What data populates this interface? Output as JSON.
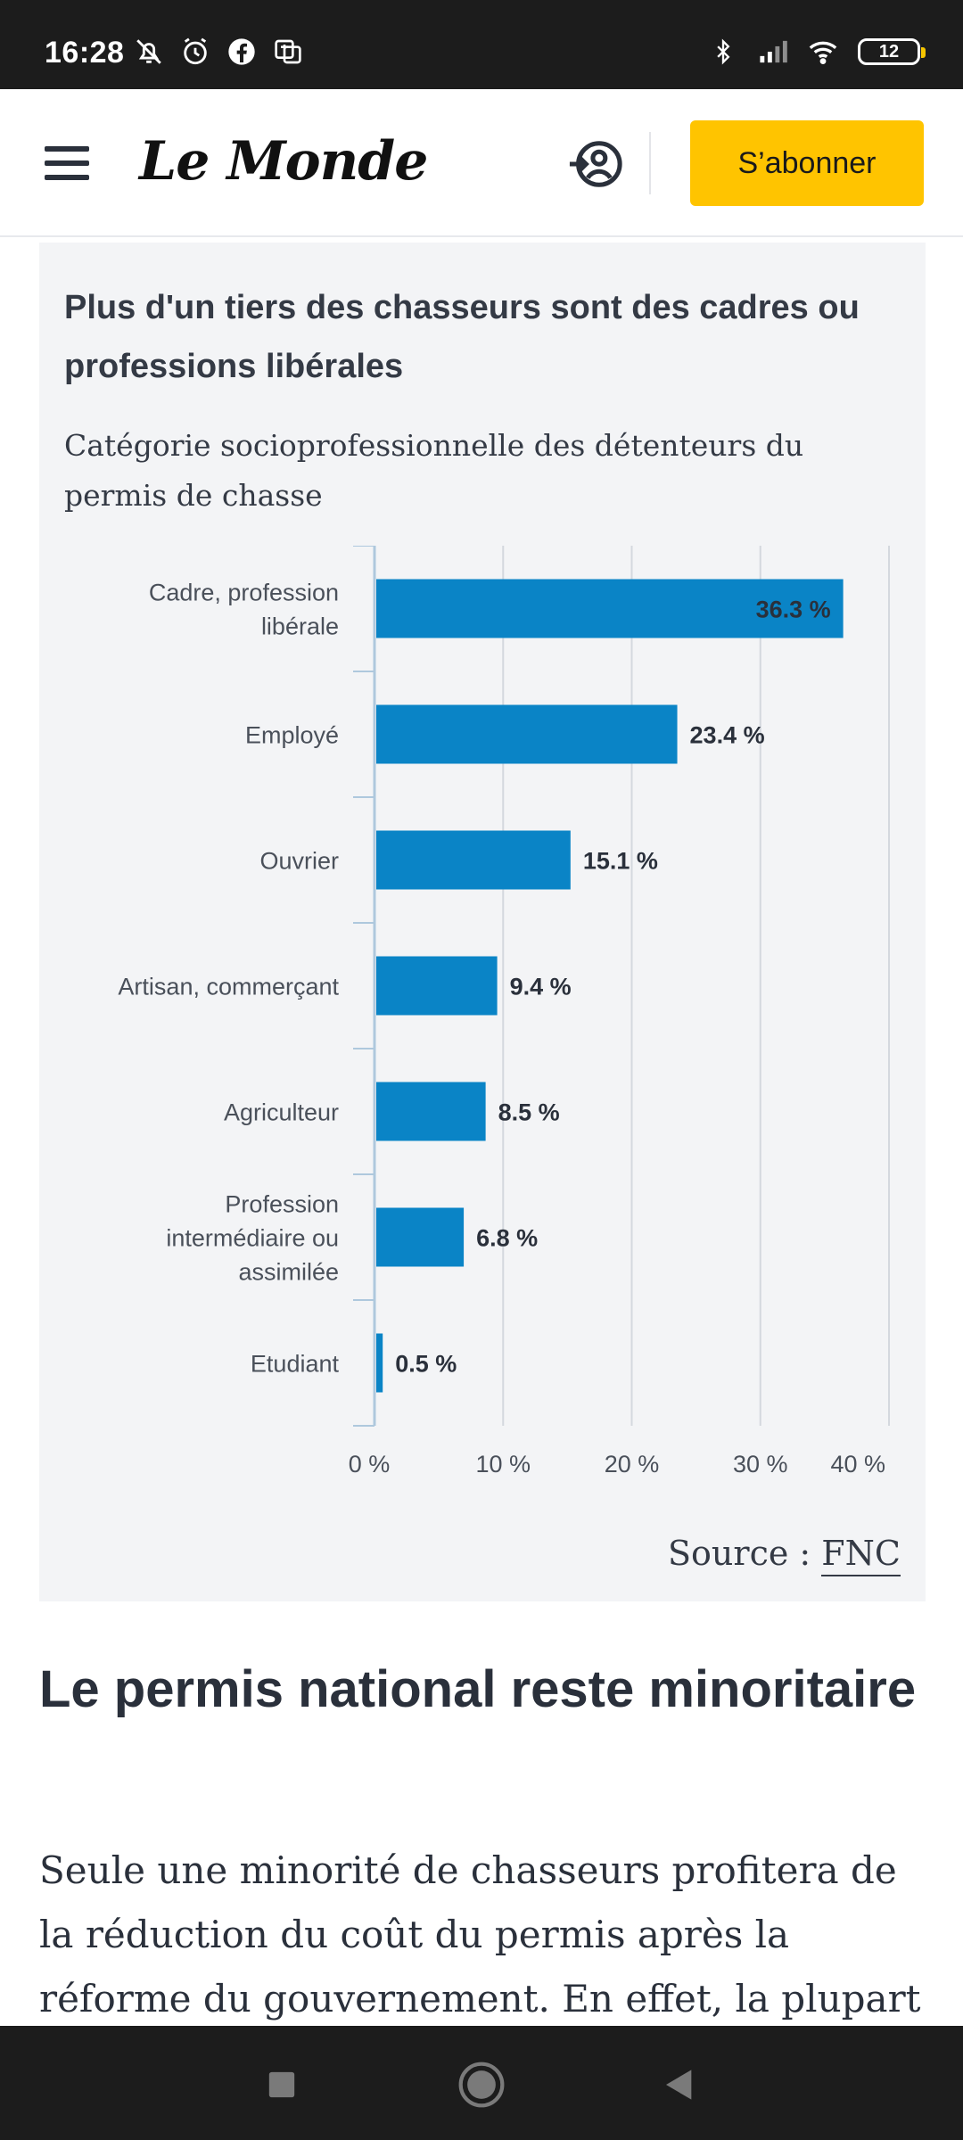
{
  "status_bar": {
    "time": "16:28",
    "battery": "12",
    "icons_left": [
      "bell-off-icon",
      "alarm-icon",
      "facebook-icon",
      "translate-icon"
    ],
    "icons_right": [
      "bluetooth-icon",
      "signal-icon",
      "wifi-icon",
      "battery-icon"
    ]
  },
  "header": {
    "logo": "Le Monde",
    "subscribe_label": "S’abonner"
  },
  "chart": {
    "title": "Plus d'un tiers des chasseurs sont des cadres ou professions libérales",
    "subtitle": "Catégorie socioprofessionnelle des détenteurs du permis de chasse",
    "source_prefix": "Source : ",
    "source_name": "FNC"
  },
  "chart_data": {
    "type": "bar",
    "orientation": "horizontal",
    "categories": [
      [
        "Cadre, profession",
        "libérale"
      ],
      [
        "Employé"
      ],
      [
        "Ouvrier"
      ],
      [
        "Artisan, commerçant"
      ],
      [
        "Agriculteur"
      ],
      [
        "Profession",
        "intermédiaire ou",
        "assimilée"
      ],
      [
        "Etudiant"
      ]
    ],
    "values": [
      36.3,
      23.4,
      15.1,
      9.4,
      8.5,
      6.8,
      0.5
    ],
    "value_labels": [
      "36.3 %",
      "23.4 %",
      "15.1 %",
      "9.4 %",
      "8.5 %",
      "6.8 %",
      "0.5 %"
    ],
    "xlim": [
      0,
      40
    ],
    "ticks": [
      0,
      10,
      20,
      30,
      40
    ],
    "tick_labels": [
      "0 %",
      "10 %",
      "20 %",
      "30 %",
      "40 %"
    ],
    "grid": true,
    "bar_color": "#0a84c6"
  },
  "article": {
    "heading": "Le permis national reste minoritaire",
    "paragraph": "Seule une minorité de chasseurs profitera de la réduction du coût du permis après la réforme du gouvernement. En effet, la plupart des"
  },
  "nav": {
    "icons": [
      "recents-icon",
      "home-icon",
      "back-icon"
    ]
  }
}
